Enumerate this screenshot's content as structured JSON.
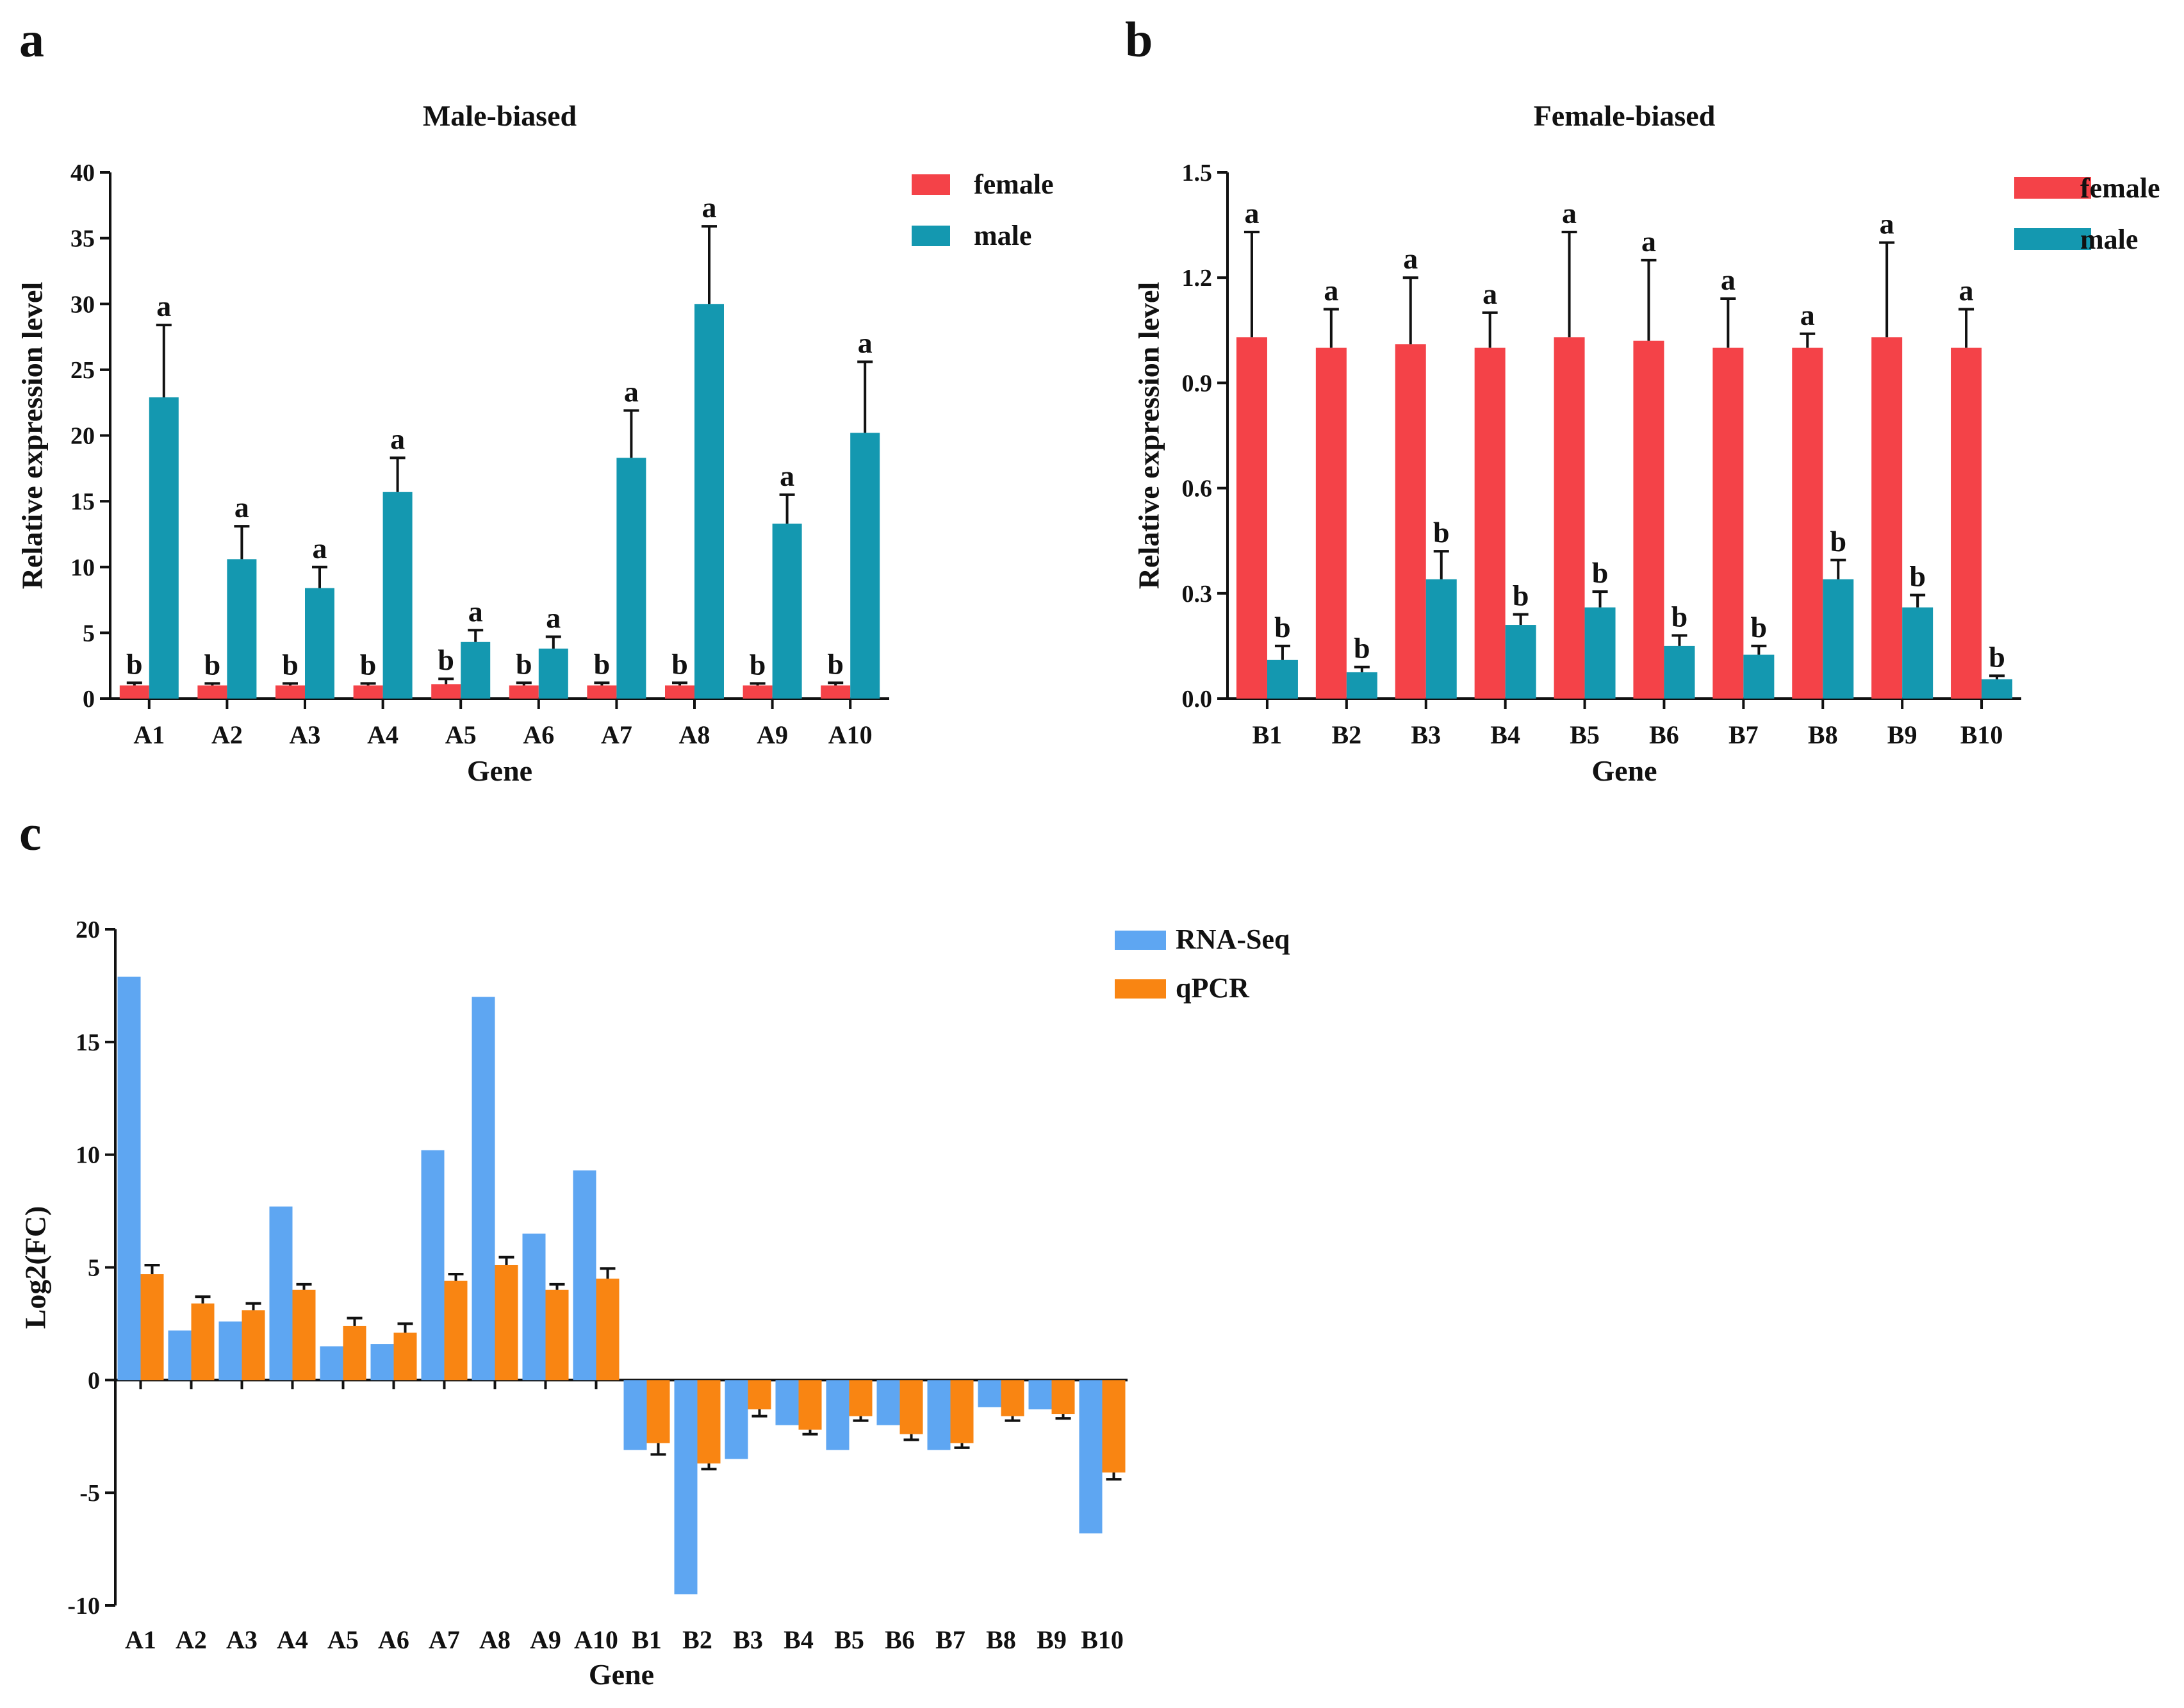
{
  "colors": {
    "female": "#F44248",
    "male": "#1498B0",
    "rnaseq": "#5EA6F2",
    "qpcr": "#F98512",
    "axis": "#111111"
  },
  "chart_data": [
    {
      "id": "a",
      "panel_letter": "a",
      "type": "bar",
      "title": "Male-biased",
      "xlabel": "Gene",
      "ylabel": "Relative expression level",
      "ylim": [
        0,
        40
      ],
      "yticks": [
        0,
        5,
        10,
        15,
        20,
        25,
        30,
        35,
        40
      ],
      "ytick_labels": [
        "0",
        "5",
        "10",
        "15",
        "20",
        "25",
        "30",
        "35",
        "40"
      ],
      "categories": [
        "A1",
        "A2",
        "A3",
        "A4",
        "A5",
        "A6",
        "A7",
        "A8",
        "A9",
        "A10"
      ],
      "legend_position": "top-right",
      "series": [
        {
          "name": "female",
          "color_key": "female",
          "values": [
            1.0,
            1.0,
            1.0,
            1.0,
            1.1,
            1.0,
            1.0,
            1.0,
            1.0,
            1.0
          ],
          "errors": [
            0.2,
            0.15,
            0.15,
            0.15,
            0.4,
            0.2,
            0.2,
            0.2,
            0.15,
            0.2
          ],
          "sig": [
            "b",
            "b",
            "b",
            "b",
            "b",
            "b",
            "b",
            "b",
            "b",
            "b"
          ]
        },
        {
          "name": "male",
          "color_key": "male",
          "values": [
            22.9,
            10.6,
            8.4,
            15.7,
            4.3,
            3.8,
            18.3,
            30.0,
            13.3,
            20.2
          ],
          "errors": [
            5.5,
            2.5,
            1.6,
            2.6,
            0.9,
            0.9,
            3.6,
            5.9,
            2.2,
            5.4
          ],
          "sig": [
            "a",
            "a",
            "a",
            "a",
            "a",
            "a",
            "a",
            "a",
            "a",
            "a"
          ]
        }
      ]
    },
    {
      "id": "b",
      "panel_letter": "b",
      "type": "bar",
      "title": "Female-biased",
      "xlabel": "Gene",
      "ylabel": "Relative expression level",
      "ylim": [
        0,
        1.5
      ],
      "yticks": [
        0,
        0.3,
        0.6,
        0.9,
        1.2,
        1.5
      ],
      "ytick_labels": [
        "0.0",
        "0.3",
        "0.6",
        "0.9",
        "1.2",
        "1.5"
      ],
      "categories": [
        "B1",
        "B2",
        "B3",
        "B4",
        "B5",
        "B6",
        "B7",
        "B8",
        "B9",
        "B10"
      ],
      "legend_position": "top-right",
      "series": [
        {
          "name": "female",
          "color_key": "female",
          "values": [
            1.03,
            1.0,
            1.01,
            1.0,
            1.03,
            1.02,
            1.0,
            1.0,
            1.03,
            1.0
          ],
          "errors": [
            0.3,
            0.11,
            0.19,
            0.1,
            0.3,
            0.23,
            0.14,
            0.04,
            0.27,
            0.11
          ],
          "sig": [
            "a",
            "a",
            "a",
            "a",
            "a",
            "a",
            "a",
            "a",
            "a",
            "a"
          ]
        },
        {
          "name": "male",
          "color_key": "male",
          "values": [
            0.11,
            0.075,
            0.34,
            0.21,
            0.26,
            0.15,
            0.125,
            0.34,
            0.26,
            0.055
          ],
          "errors": [
            0.04,
            0.015,
            0.08,
            0.03,
            0.045,
            0.03,
            0.025,
            0.055,
            0.035,
            0.01
          ],
          "sig": [
            "b",
            "b",
            "b",
            "b",
            "b",
            "b",
            "b",
            "b",
            "b",
            "b"
          ]
        }
      ]
    },
    {
      "id": "c",
      "panel_letter": "c",
      "type": "bar",
      "title": "",
      "xlabel": "Gene",
      "ylabel": "Log2(FC)",
      "ylim": [
        -10,
        20
      ],
      "yticks": [
        -10,
        -5,
        0,
        5,
        10,
        15,
        20
      ],
      "ytick_labels": [
        "-10",
        "-5",
        "0",
        "5",
        "10",
        "15",
        "20"
      ],
      "categories": [
        "A1",
        "A2",
        "A3",
        "A4",
        "A5",
        "A6",
        "A7",
        "A8",
        "A9",
        "A10",
        "B1",
        "B2",
        "B3",
        "B4",
        "B5",
        "B6",
        "B7",
        "B8",
        "B9",
        "B10"
      ],
      "legend_position": "top-right",
      "series": [
        {
          "name": "RNA-Seq",
          "color_key": "rnaseq",
          "values": [
            17.9,
            2.2,
            2.6,
            7.7,
            1.5,
            1.6,
            10.2,
            17.0,
            6.5,
            9.3,
            -3.1,
            -9.5,
            -3.5,
            -2.0,
            -3.1,
            -2.0,
            -3.1,
            -1.2,
            -1.3,
            -6.8
          ],
          "errors": null,
          "sig": null
        },
        {
          "name": "qPCR",
          "color_key": "qpcr",
          "values": [
            4.7,
            3.4,
            3.1,
            4.0,
            2.4,
            2.1,
            4.4,
            5.1,
            4.0,
            4.5,
            -2.8,
            -3.7,
            -1.3,
            -2.2,
            -1.6,
            -2.4,
            -2.8,
            -1.6,
            -1.5,
            -4.1
          ],
          "errors": [
            0.4,
            0.3,
            0.3,
            0.25,
            0.35,
            0.4,
            0.3,
            0.35,
            0.25,
            0.45,
            0.5,
            0.25,
            0.3,
            0.2,
            0.2,
            0.25,
            0.2,
            0.2,
            0.2,
            0.3
          ],
          "sig": null
        }
      ]
    }
  ]
}
